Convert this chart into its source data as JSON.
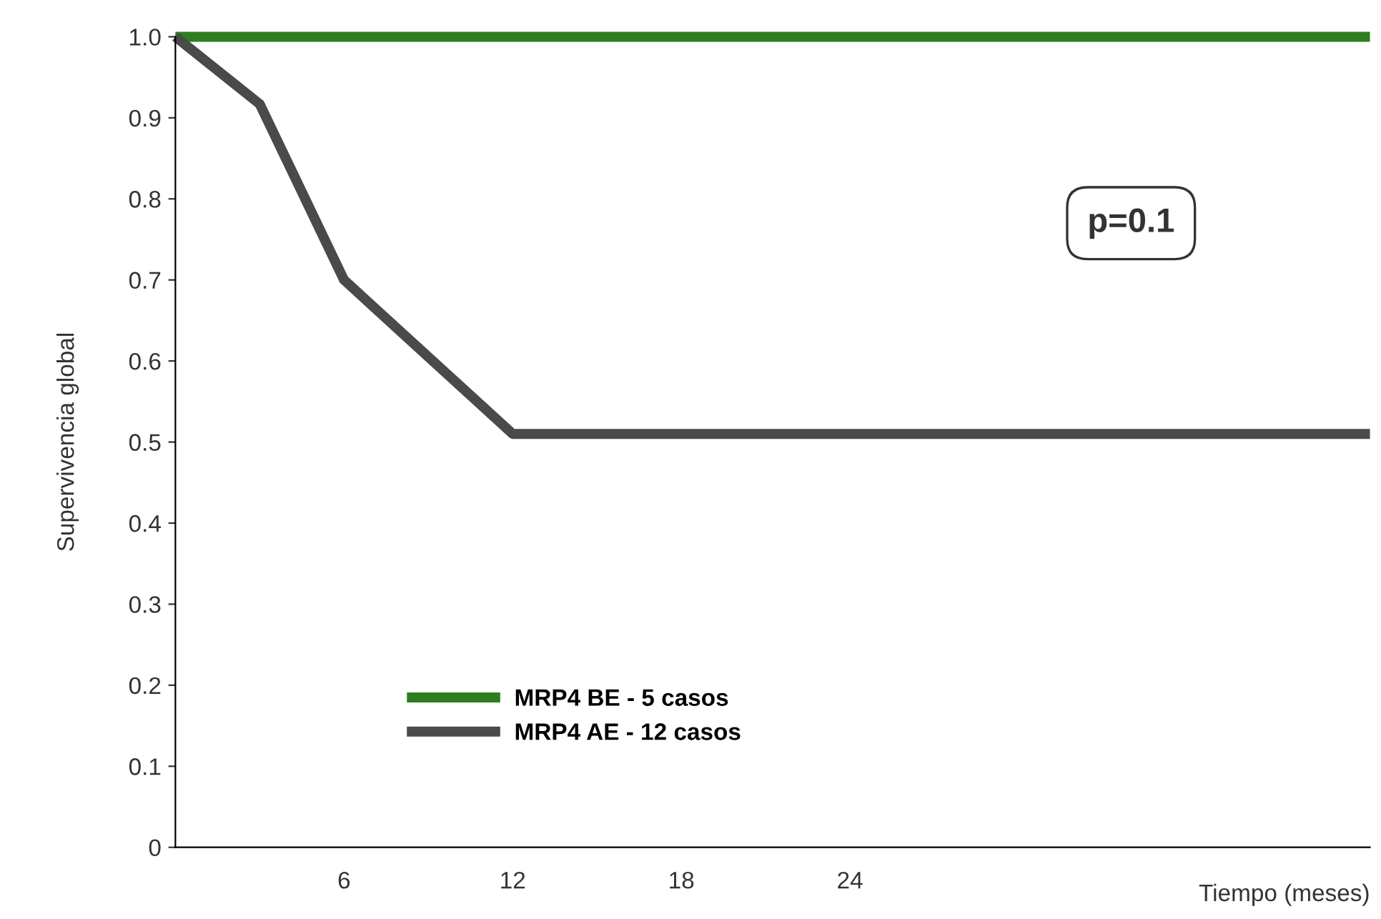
{
  "chart_data": {
    "type": "line",
    "ylabel": "Supervivencia global",
    "xlabel": "Tiempo (meses)",
    "x": [
      0,
      3,
      6,
      12,
      42.5
    ],
    "series": [
      {
        "name": "MRP4 BE - 5 casos",
        "color": "#2e7d1e",
        "values": [
          1.0,
          1.0,
          1.0,
          1.0,
          1.0
        ]
      },
      {
        "name": "MRP4 AE - 12 casos",
        "color": "#4a4a4a",
        "values": [
          1.0,
          0.917,
          0.7,
          0.51,
          0.51
        ]
      }
    ],
    "xlim": [
      0,
      42.5
    ],
    "xticks": [
      6,
      12,
      18,
      24
    ],
    "ylim": [
      0,
      1.0
    ],
    "yticks": [
      0,
      {
        "value": 0.1,
        "label": "0.1"
      },
      {
        "value": 0.2,
        "label": "0.2"
      },
      {
        "value": 0.3,
        "label": "0.3"
      },
      {
        "value": 0.4,
        "label": "0.4"
      },
      {
        "value": 0.5,
        "label": "0.5"
      },
      {
        "value": 0.6,
        "label": "0.6"
      },
      {
        "value": 0.7,
        "label": "0.7"
      },
      {
        "value": 0.8,
        "label": "0.8"
      },
      {
        "value": 0.9,
        "label": "0.9"
      },
      {
        "value": 1.0,
        "label": "1.0"
      }
    ],
    "annotations": [
      {
        "text": "p=0.1"
      }
    ],
    "legend": "bottom left",
    "grid": false,
    "marker": "none",
    "line_style": "solid"
  }
}
